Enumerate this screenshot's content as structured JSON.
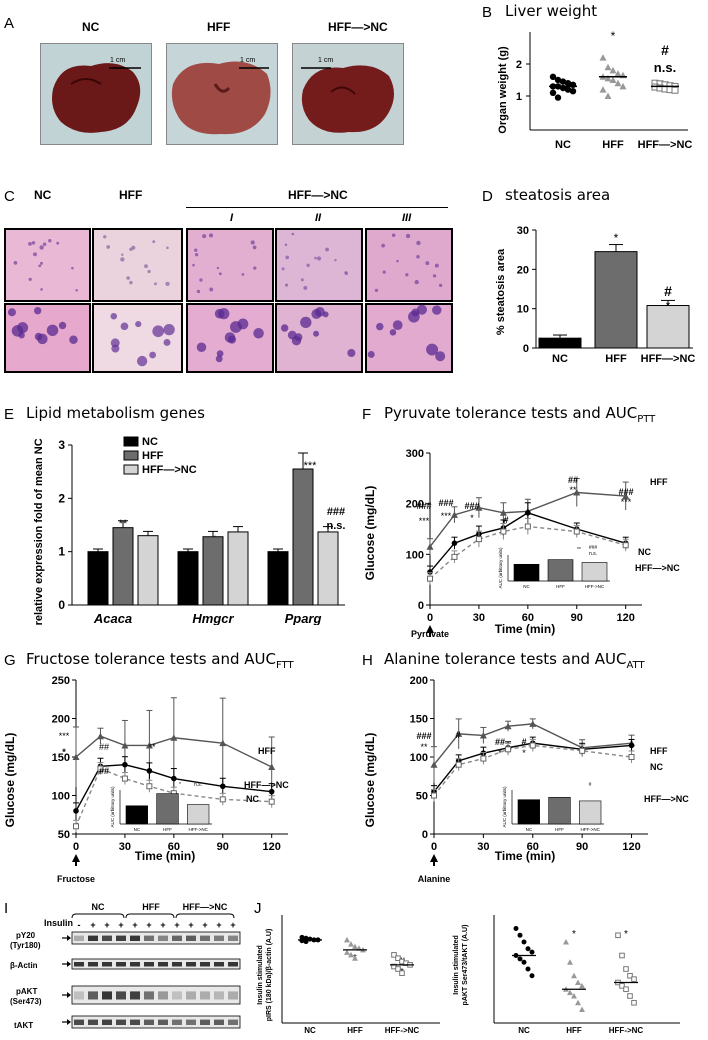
{
  "panels": {
    "A": {
      "label": "A",
      "groups": [
        "NC",
        "HFF",
        "HFF—>NC"
      ],
      "scalebar": "1 cm"
    },
    "B": {
      "label": "B",
      "title": "Liver weight",
      "ylabel": "Organ weight (g)",
      "yticks": [
        "1",
        "2"
      ],
      "annot": [
        "*",
        "#",
        "n.s."
      ]
    },
    "C": {
      "label": "C",
      "groups": [
        "NC",
        "HFF",
        "HFF—>NC"
      ],
      "sub": [
        "I",
        "II",
        "III"
      ]
    },
    "D": {
      "label": "D",
      "title": "steatosis area",
      "annot": [
        "*",
        "#",
        "*"
      ]
    },
    "E": {
      "label": "E",
      "title": "Lipid metabolism genes",
      "annot": [
        "**",
        "*",
        "**",
        "***",
        "###",
        "n.s."
      ]
    },
    "F": {
      "label": "F",
      "title": "Pyruvate tolerance tests and AUC",
      "title_sub": "PTT",
      "arrow_label": "Pyruvate",
      "series_labels": [
        "HFF",
        "NC",
        "HFF—>NC"
      ],
      "inset_ylabel": "AUC (arbitrary units)",
      "inset_annot": [
        "**",
        "###",
        "n.s."
      ]
    },
    "G": {
      "label": "G",
      "title": "Fructose tolerance tests and AUC",
      "title_sub": "FTT",
      "arrow_label": "Fructose",
      "series_labels": [
        "HFF",
        "HFF—>NC",
        "NC"
      ],
      "inset_ylabel": "AUC (arbitrary units)",
      "inset_annot": [
        "*",
        "n.s."
      ]
    },
    "H": {
      "label": "H",
      "title": "Alanine tolerance tests and AUC",
      "title_sub": "ATT",
      "arrow_label": "Alanine",
      "series_labels": [
        "HFF",
        "NC",
        "HFF—>NC"
      ],
      "inset_ylabel": "AUC (arbitrary units)",
      "inset_annot": [
        "#"
      ]
    },
    "I": {
      "label": "I",
      "groups": [
        "NC",
        "HFF",
        "HFF—>NC"
      ],
      "insulin_label": "Insulin",
      "signs": [
        "-",
        "+",
        "+",
        "+",
        "+",
        "+",
        "+",
        "+",
        "+",
        "+",
        "+",
        "+"
      ],
      "rows": [
        "pY20",
        "(Tyr180)",
        "β-Actin",
        "pAKT",
        "(Ser473)",
        "tAKT"
      ]
    },
    "J": {
      "label": "J",
      "left_ylabel": [
        "Insulin stimulated",
        "pIRS (180 kDa)/β-actin (A.U)"
      ],
      "right_ylabel": [
        "Insulin stimulated",
        "pAKT Ser473/tAKT (A.U)"
      ],
      "left_annot": [
        "*",
        "#",
        "*"
      ],
      "right_annot": [
        "*",
        "*"
      ]
    }
  },
  "chart_data": [
    {
      "panel": "B",
      "type": "scatter",
      "title": "Liver weight",
      "xlabel": "",
      "ylabel": "Organ weight (g)",
      "categories": [
        "NC",
        "HFF",
        "HFF—>NC"
      ],
      "ylim": [
        0,
        2.6
      ],
      "yticks": [
        1,
        2
      ],
      "means": [
        1.3,
        1.6,
        1.3
      ],
      "points": [
        [
          1.6,
          1.5,
          1.45,
          1.4,
          1.35,
          1.3,
          1.3,
          1.25,
          1.2,
          1.15,
          1.1,
          0.95
        ],
        [
          2.2,
          1.9,
          1.8,
          1.7,
          1.65,
          1.6,
          1.55,
          1.5,
          1.4,
          1.3,
          1.2,
          1.0
        ],
        [
          1.4,
          1.38,
          1.35,
          1.32,
          1.3,
          1.28,
          1.25,
          1.22,
          1.2,
          1.18
        ]
      ]
    },
    {
      "panel": "D",
      "type": "bar",
      "title": "steatosis area",
      "xlabel": "",
      "ylabel": "% steatosis area",
      "categories": [
        "NC",
        "HFF",
        "HFF—>NC"
      ],
      "values": [
        2.5,
        24.5,
        10.8
      ],
      "errors": [
        0.8,
        1.8,
        1.3
      ],
      "ylim": [
        0,
        30
      ],
      "yticks": [
        0,
        10,
        20,
        30
      ],
      "colors": [
        "#000000",
        "#6d6d6d",
        "#d4d4d4"
      ]
    },
    {
      "panel": "E",
      "type": "bar",
      "title": "Lipid metabolism genes",
      "xlabel": "",
      "ylabel": "mRNA relative expression fold of mean NC",
      "categories": [
        "Acaca",
        "Hmgcr",
        "Pparg"
      ],
      "series": [
        {
          "name": "NC",
          "values": [
            1.0,
            1.0,
            1.0
          ],
          "errors": [
            0.05,
            0.05,
            0.05
          ],
          "color": "#000000"
        },
        {
          "name": "HFF",
          "values": [
            1.45,
            1.28,
            2.55
          ],
          "errors": [
            0.13,
            0.1,
            0.3
          ],
          "color": "#6d6d6d"
        },
        {
          "name": "HFF—>NC",
          "values": [
            1.3,
            1.37,
            1.37
          ],
          "errors": [
            0.08,
            0.1,
            0.1
          ],
          "color": "#d4d4d4"
        }
      ],
      "ylim": [
        0,
        3
      ],
      "yticks": [
        0,
        1,
        2,
        3
      ]
    },
    {
      "panel": "F",
      "type": "line",
      "title": "Pyruvate tolerance tests and AUC",
      "xlabel": "Time (min)",
      "ylabel": "Glucose (mg/dL)",
      "x": [
        0,
        15,
        30,
        45,
        60,
        90,
        120
      ],
      "xlim": [
        0,
        130
      ],
      "ylim": [
        0,
        300
      ],
      "xticks": [
        0,
        30,
        60,
        90,
        120
      ],
      "yticks": [
        0,
        100,
        200,
        300
      ],
      "series": [
        {
          "name": "HFF",
          "values": [
            115,
            178,
            192,
            182,
            185,
            222,
            215
          ]
        },
        {
          "name": "NC",
          "values": [
            65,
            122,
            140,
            152,
            182,
            150,
            122
          ]
        },
        {
          "name": "HFF—>NC",
          "values": [
            52,
            95,
            130,
            145,
            155,
            145,
            118
          ]
        }
      ],
      "annotations": [
        "###",
        "***",
        "###",
        "***",
        "###",
        "*",
        "#",
        "##",
        "**",
        "###",
        "***"
      ],
      "inset": {
        "type": "bar",
        "categories": [
          "NC",
          "HFF",
          "HFF->NC"
        ],
        "values": [
          18,
          23,
          20
        ]
      }
    },
    {
      "panel": "G",
      "type": "line",
      "title": "Fructose tolerance tests and AUC",
      "xlabel": "Time (min)",
      "ylabel": "Glucose (mg/dL)",
      "x": [
        0,
        15,
        30,
        45,
        60,
        90,
        120
      ],
      "xlim": [
        0,
        130
      ],
      "ylim": [
        50,
        250
      ],
      "xticks": [
        0,
        30,
        60,
        90,
        120
      ],
      "yticks": [
        50,
        100,
        150,
        200,
        250
      ],
      "series": [
        {
          "name": "HFF",
          "values": [
            150,
            177,
            165,
            165,
            175,
            168,
            137
          ]
        },
        {
          "name": "HFF—>NC",
          "values": [
            80,
            138,
            140,
            132,
            122,
            112,
            105
          ]
        },
        {
          "name": "NC",
          "values": [
            60,
            135,
            122,
            112,
            103,
            95,
            92
          ]
        }
      ],
      "annotations": [
        "***",
        "*",
        "##",
        "##",
        "**"
      ],
      "inset": {
        "type": "bar",
        "categories": [
          "NC",
          "HFF",
          "HFF->NC"
        ],
        "values": [
          15,
          25,
          16
        ]
      }
    },
    {
      "panel": "H",
      "type": "line",
      "title": "Alanine tolerance tests and AUC",
      "xlabel": "Time (min)",
      "ylabel": "Glucose (mg/dL)",
      "x": [
        0,
        15,
        30,
        45,
        60,
        90,
        120
      ],
      "xlim": [
        0,
        130
      ],
      "ylim": [
        0,
        200
      ],
      "xticks": [
        0,
        30,
        60,
        90,
        120
      ],
      "yticks": [
        0,
        50,
        100,
        150,
        200
      ],
      "series": [
        {
          "name": "HFF",
          "values": [
            90,
            130,
            128,
            140,
            143,
            112,
            118
          ]
        },
        {
          "name": "NC",
          "values": [
            55,
            95,
            105,
            112,
            118,
            110,
            115
          ]
        },
        {
          "name": "HFF—>NC",
          "values": [
            50,
            90,
            98,
            110,
            115,
            108,
            100
          ]
        }
      ],
      "annotations": [
        "###",
        "**",
        "#",
        "##",
        "*",
        "#",
        "*"
      ],
      "inset": {
        "type": "bar",
        "categories": [
          "NC",
          "HFF",
          "HFF->NC"
        ],
        "values": [
          20,
          22,
          19
        ]
      }
    },
    {
      "panel": "J-left",
      "type": "scatter",
      "categories": [
        "NC",
        "HFF",
        "HFF->NC"
      ],
      "ylim": [
        0,
        1.3
      ],
      "means": [
        1.0,
        0.88,
        0.7
      ],
      "points": [
        [
          1.03,
          1.02,
          1.01,
          1.0,
          1.0,
          0.99,
          0.98
        ],
        [
          1.0,
          0.95,
          0.92,
          0.9,
          0.88,
          0.85,
          0.82,
          0.78
        ],
        [
          0.82,
          0.78,
          0.74,
          0.72,
          0.7,
          0.68,
          0.65,
          0.6
        ]
      ]
    },
    {
      "panel": "J-right",
      "type": "scatter",
      "categories": [
        "NC",
        "HFF",
        "HFF->NC"
      ],
      "ylim": [
        0,
        1.6
      ],
      "means": [
        1.0,
        0.5,
        0.6
      ],
      "points": [
        [
          1.4,
          1.3,
          1.2,
          1.1,
          1.05,
          1.0,
          0.95,
          0.9,
          0.8,
          0.7
        ],
        [
          1.2,
          0.9,
          0.7,
          0.6,
          0.55,
          0.5,
          0.45,
          0.4,
          0.3,
          0.2
        ],
        [
          1.3,
          1.0,
          0.8,
          0.7,
          0.65,
          0.6,
          0.55,
          0.5,
          0.4,
          0.3
        ]
      ]
    }
  ]
}
